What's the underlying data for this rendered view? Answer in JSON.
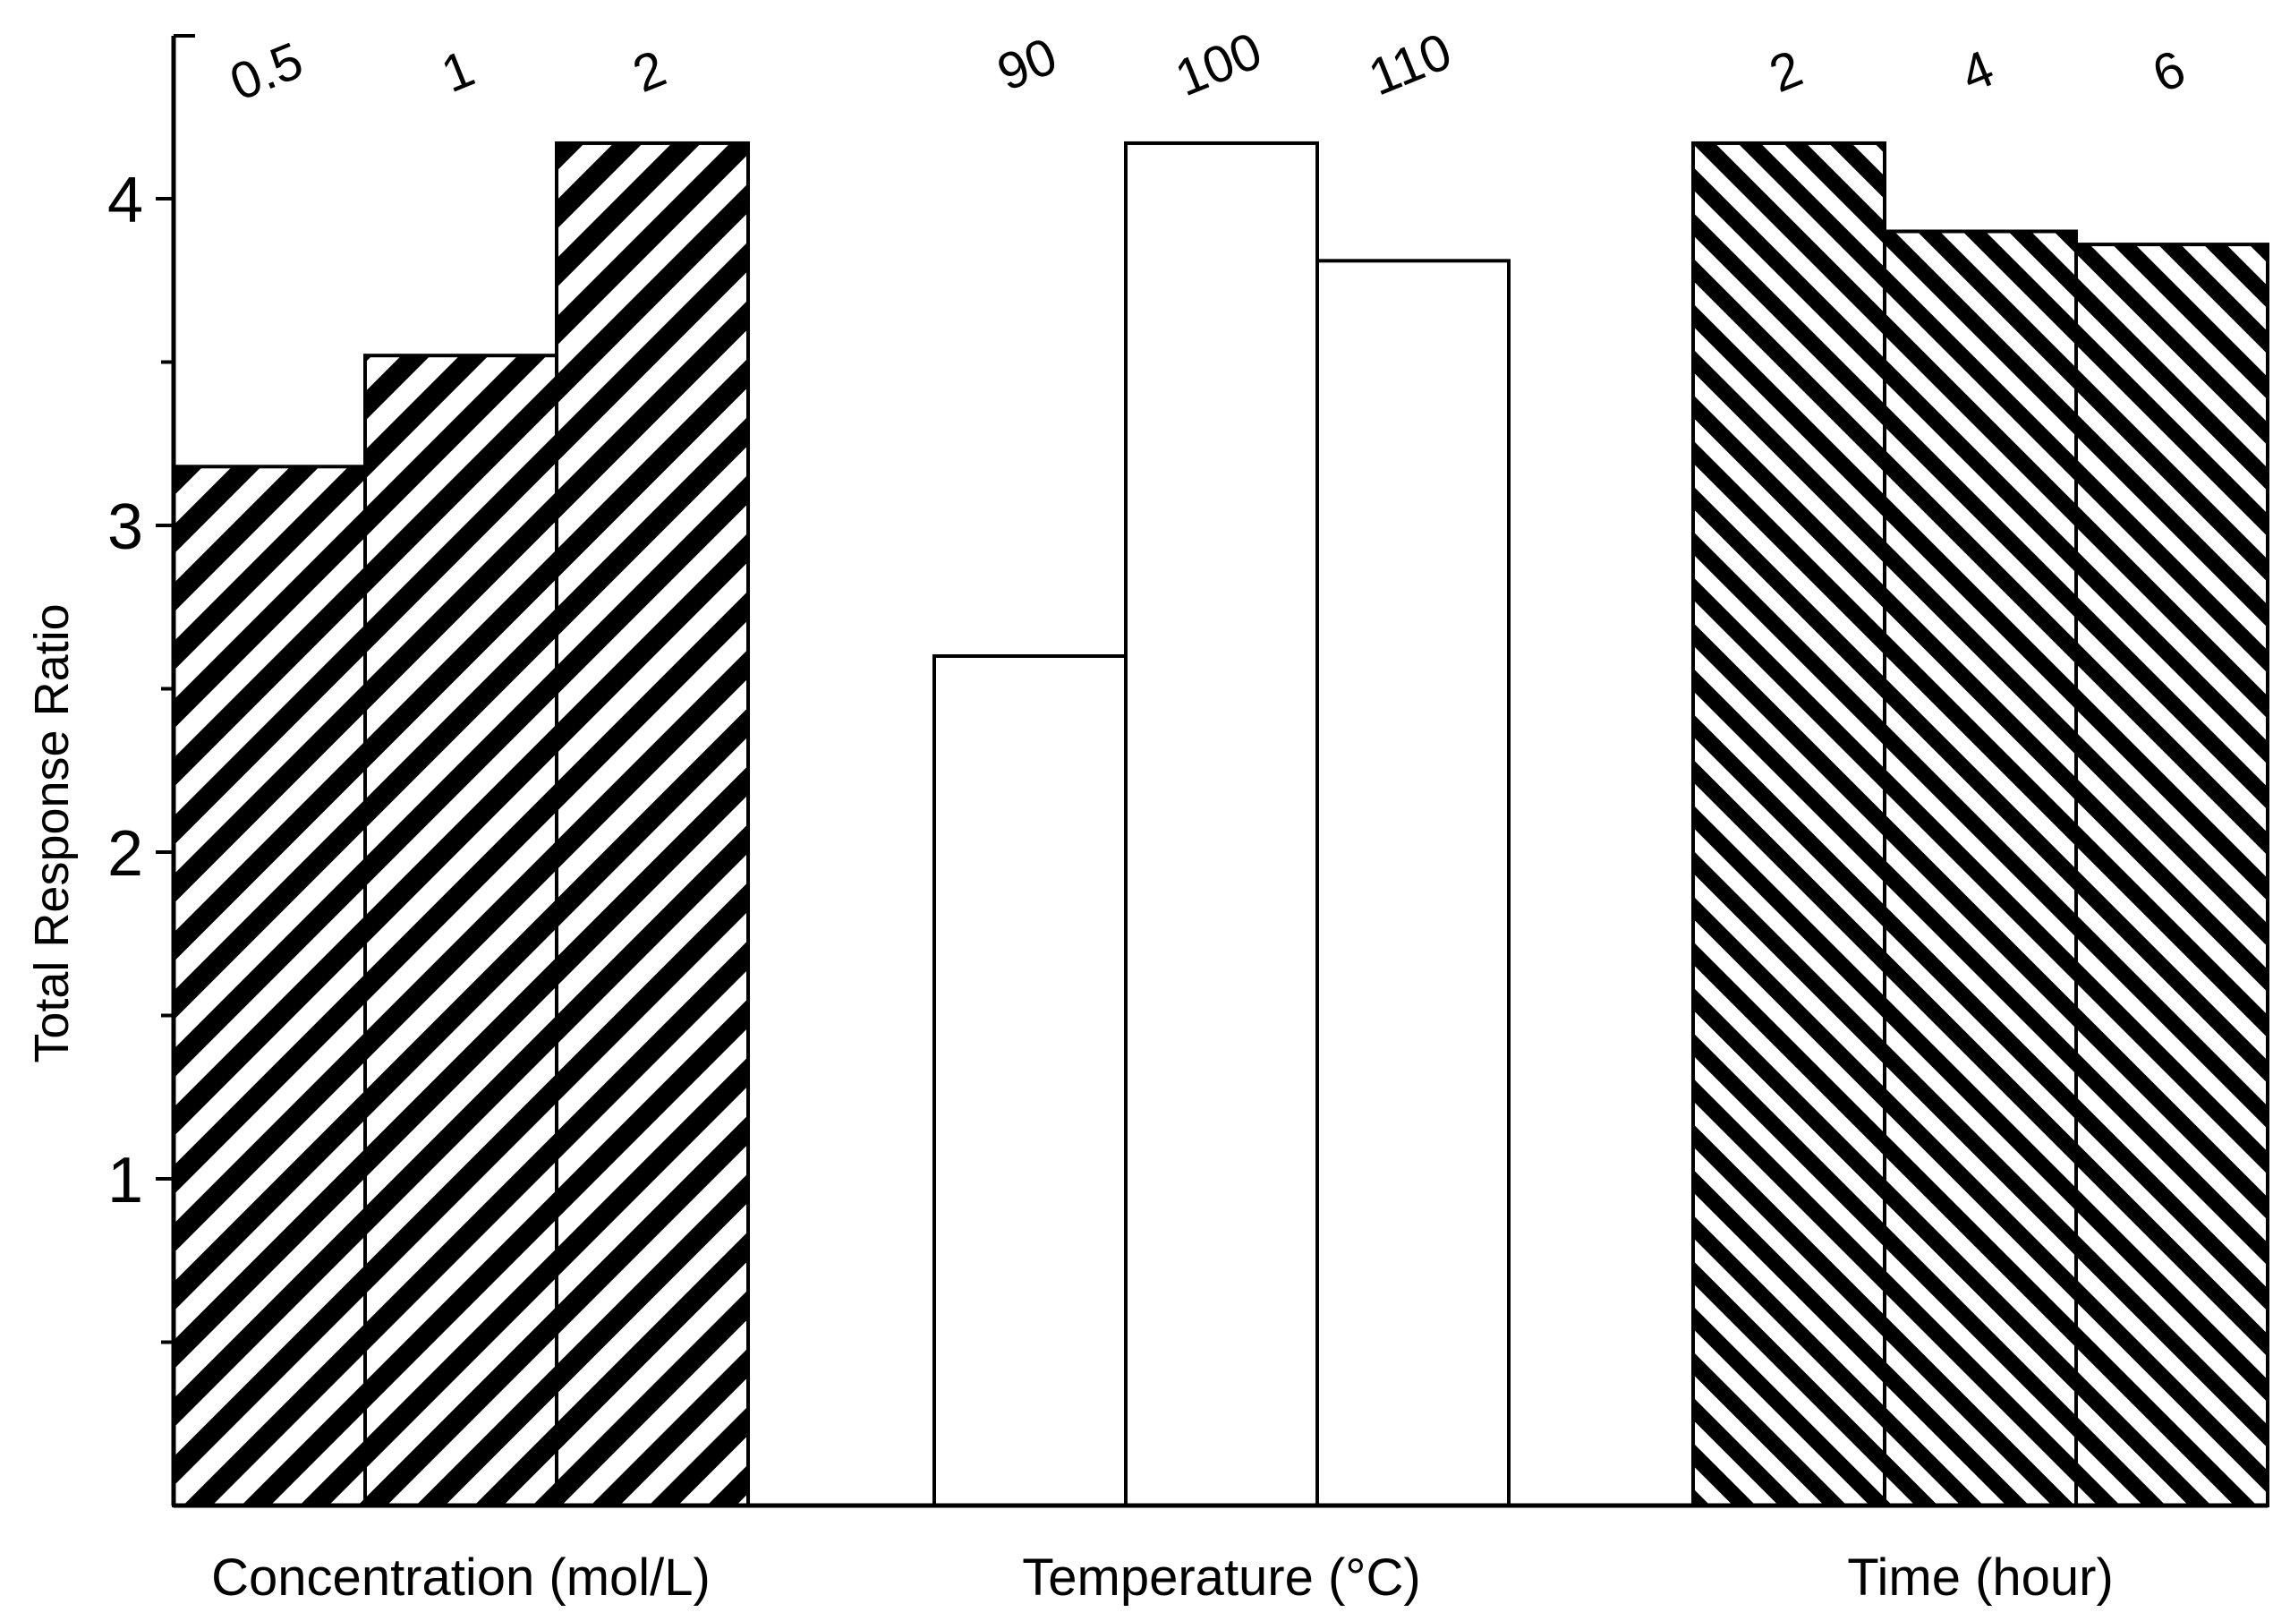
{
  "chart_data": {
    "type": "bar",
    "ylabel": "Total Response Ratio",
    "ylim": [
      0,
      4.4
    ],
    "y_ticks": [
      1,
      2,
      3,
      4
    ],
    "grid": false,
    "groups": [
      {
        "name": "Concentration (mol/L)",
        "pattern": "hatch-down",
        "categories": [
          "0.5",
          "1",
          "2"
        ],
        "values": [
          3.18,
          3.52,
          4.17
        ]
      },
      {
        "name": "Temperature (°C)",
        "pattern": "none",
        "categories": [
          "90",
          "100",
          "110"
        ],
        "values": [
          2.6,
          4.17,
          3.81
        ]
      },
      {
        "name": "Time (hour)",
        "pattern": "hatch-up",
        "categories": [
          "2",
          "4",
          "6"
        ],
        "values": [
          4.17,
          3.9,
          3.86
        ]
      }
    ]
  },
  "colors": {
    "ink": "#000000",
    "paper": "#ffffff"
  }
}
